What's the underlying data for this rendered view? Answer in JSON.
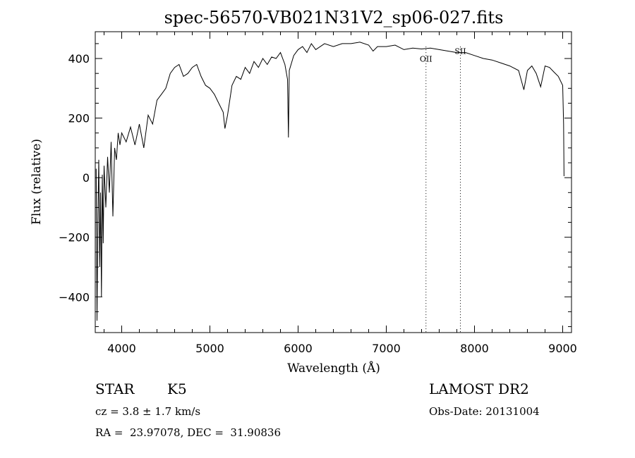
{
  "chart_data": {
    "type": "line",
    "title": "spec-56570-VB021N31V2_sp06-027.fits",
    "xlabel": "Wavelength (Å)",
    "ylabel": "Flux (relative)",
    "xlim": [
      3700,
      9100
    ],
    "ylim": [
      -520,
      490
    ],
    "x_ticks": [
      4000,
      5000,
      6000,
      7000,
      8000,
      9000
    ],
    "x_tick_labels": [
      "4000",
      "5000",
      "6000",
      "7000",
      "8000",
      "9000"
    ],
    "y_ticks": [
      -400,
      -200,
      0,
      200,
      400
    ],
    "y_tick_labels": [
      "−400",
      "−200",
      "0",
      "200",
      "400"
    ],
    "grid": false,
    "legend": "none",
    "line_color": "#000000",
    "annotations": [
      {
        "label": "OII",
        "x": 7450
      },
      {
        "label": "SII",
        "x": 7840
      }
    ],
    "series": [
      {
        "points": [
          [
            3710,
            30
          ],
          [
            3720,
            -480
          ],
          [
            3730,
            -120
          ],
          [
            3740,
            60
          ],
          [
            3750,
            -300
          ],
          [
            3760,
            -50
          ],
          [
            3770,
            -400
          ],
          [
            3780,
            10
          ],
          [
            3790,
            -220
          ],
          [
            3800,
            40
          ],
          [
            3820,
            -100
          ],
          [
            3840,
            70
          ],
          [
            3860,
            -50
          ],
          [
            3880,
            120
          ],
          [
            3900,
            -130
          ],
          [
            3920,
            100
          ],
          [
            3940,
            60
          ],
          [
            3960,
            150
          ],
          [
            3980,
            110
          ],
          [
            4000,
            150
          ],
          [
            4050,
            120
          ],
          [
            4100,
            170
          ],
          [
            4150,
            110
          ],
          [
            4200,
            180
          ],
          [
            4250,
            100
          ],
          [
            4300,
            210
          ],
          [
            4350,
            180
          ],
          [
            4400,
            260
          ],
          [
            4450,
            280
          ],
          [
            4500,
            300
          ],
          [
            4550,
            350
          ],
          [
            4600,
            370
          ],
          [
            4650,
            380
          ],
          [
            4700,
            340
          ],
          [
            4750,
            350
          ],
          [
            4800,
            370
          ],
          [
            4850,
            380
          ],
          [
            4900,
            340
          ],
          [
            4950,
            310
          ],
          [
            5000,
            300
          ],
          [
            5050,
            280
          ],
          [
            5100,
            250
          ],
          [
            5150,
            220
          ],
          [
            5170,
            165
          ],
          [
            5200,
            210
          ],
          [
            5250,
            310
          ],
          [
            5300,
            340
          ],
          [
            5350,
            330
          ],
          [
            5400,
            370
          ],
          [
            5450,
            350
          ],
          [
            5500,
            390
          ],
          [
            5550,
            370
          ],
          [
            5600,
            400
          ],
          [
            5650,
            380
          ],
          [
            5700,
            405
          ],
          [
            5750,
            400
          ],
          [
            5800,
            420
          ],
          [
            5850,
            380
          ],
          [
            5880,
            330
          ],
          [
            5890,
            135
          ],
          [
            5900,
            360
          ],
          [
            5950,
            410
          ],
          [
            6000,
            430
          ],
          [
            6050,
            440
          ],
          [
            6100,
            420
          ],
          [
            6150,
            450
          ],
          [
            6200,
            430
          ],
          [
            6300,
            450
          ],
          [
            6400,
            440
          ],
          [
            6500,
            450
          ],
          [
            6600,
            450
          ],
          [
            6700,
            455
          ],
          [
            6800,
            445
          ],
          [
            6850,
            425
          ],
          [
            6900,
            440
          ],
          [
            7000,
            440
          ],
          [
            7100,
            445
          ],
          [
            7200,
            430
          ],
          [
            7300,
            435
          ],
          [
            7400,
            432
          ],
          [
            7500,
            435
          ],
          [
            7600,
            430
          ],
          [
            7700,
            425
          ],
          [
            7800,
            420
          ],
          [
            7900,
            420
          ],
          [
            8000,
            410
          ],
          [
            8100,
            400
          ],
          [
            8200,
            395
          ],
          [
            8300,
            385
          ],
          [
            8400,
            375
          ],
          [
            8500,
            360
          ],
          [
            8560,
            295
          ],
          [
            8600,
            360
          ],
          [
            8650,
            375
          ],
          [
            8700,
            350
          ],
          [
            8750,
            305
          ],
          [
            8800,
            375
          ],
          [
            8850,
            370
          ],
          [
            8900,
            355
          ],
          [
            8950,
            340
          ],
          [
            9000,
            310
          ],
          [
            9010,
            180
          ],
          [
            9015,
            5
          ]
        ]
      }
    ]
  },
  "info": {
    "object_class": "STAR",
    "subclass": "K5",
    "redshift_line": "cz = 3.8 ± 1.7 km/s",
    "coords_line": "RA =  23.97078, DEC =  31.90836",
    "survey": "LAMOST DR2",
    "obs_date_line": "Obs-Date: 20131004"
  }
}
